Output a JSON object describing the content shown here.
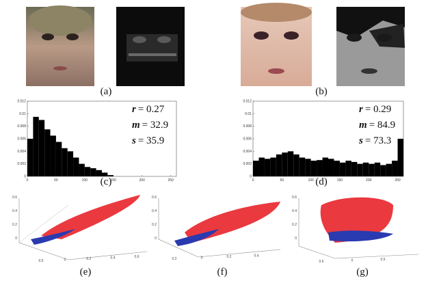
{
  "captions": [
    "(a)",
    "(b)",
    "(c)",
    "(d)",
    "(e)",
    "(f)",
    "(g)"
  ],
  "chart_data": [
    {
      "type": "histogram",
      "bins": [
        0,
        10,
        20,
        30,
        40,
        50,
        60,
        70,
        80,
        90,
        100,
        110,
        120,
        130,
        140,
        150,
        160,
        170,
        180,
        190,
        200,
        210,
        220,
        230,
        240,
        250,
        260
      ],
      "values": [
        0.006,
        0.0095,
        0.009,
        0.0075,
        0.0065,
        0.0055,
        0.0045,
        0.004,
        0.003,
        0.002,
        0.0015,
        0.0013,
        0.001,
        0.0006,
        0.0002,
        0,
        0,
        0,
        0,
        0,
        0,
        0,
        0,
        0,
        0,
        0
      ],
      "color": "#000000",
      "xlim": [
        0,
        260
      ],
      "xticks": [
        0,
        50,
        100,
        150,
        200,
        250
      ],
      "ylim": [
        0,
        0.012
      ],
      "yticks": [
        0,
        0.002,
        0.004,
        0.006,
        0.008,
        0.01,
        0.012
      ],
      "annotations": [
        {
          "symbol": "r",
          "text": "= 0.27"
        },
        {
          "symbol": "m",
          "text": "= 32.9"
        },
        {
          "symbol": "s",
          "text": "= 35.9"
        }
      ]
    },
    {
      "type": "histogram",
      "bins": [
        0,
        10,
        20,
        30,
        40,
        50,
        60,
        70,
        80,
        90,
        100,
        110,
        120,
        130,
        140,
        150,
        160,
        170,
        180,
        190,
        200,
        210,
        220,
        230,
        240,
        250,
        260
      ],
      "values": [
        0.0025,
        0.003,
        0.0028,
        0.003,
        0.0035,
        0.0038,
        0.004,
        0.0035,
        0.003,
        0.0028,
        0.0025,
        0.0026,
        0.003,
        0.0028,
        0.0025,
        0.0022,
        0.0025,
        0.0023,
        0.002,
        0.0022,
        0.002,
        0.0022,
        0.0018,
        0.002,
        0.0025,
        0.006
      ],
      "color": "#000000",
      "xlim": [
        0,
        260
      ],
      "xticks": [
        0,
        50,
        100,
        150,
        200,
        250
      ],
      "ylim": [
        0,
        0.012
      ],
      "yticks": [
        0,
        0.002,
        0.004,
        0.006,
        0.008,
        0.01,
        0.012
      ],
      "annotations": [
        {
          "symbol": "r",
          "text": "= 0.29"
        },
        {
          "symbol": "m",
          "text": "= 84.9"
        },
        {
          "symbol": "s",
          "text": "= 73.3"
        }
      ]
    }
  ],
  "scatter_ticks": [
    {
      "z": [
        "0.6",
        "0.4",
        "0.2",
        "0"
      ],
      "x": [
        "0.5",
        "0",
        "0.2",
        "0.4",
        "0.6"
      ]
    },
    {
      "z": [
        "0.6",
        "0.4",
        "0.2",
        "0"
      ],
      "x": [
        "0.2",
        "0",
        "0.2",
        "0.4"
      ]
    },
    {
      "z": [
        "0.6",
        "0.4",
        "0.2",
        "0"
      ],
      "x": [
        "0.5",
        "0",
        "0.5"
      ]
    }
  ]
}
